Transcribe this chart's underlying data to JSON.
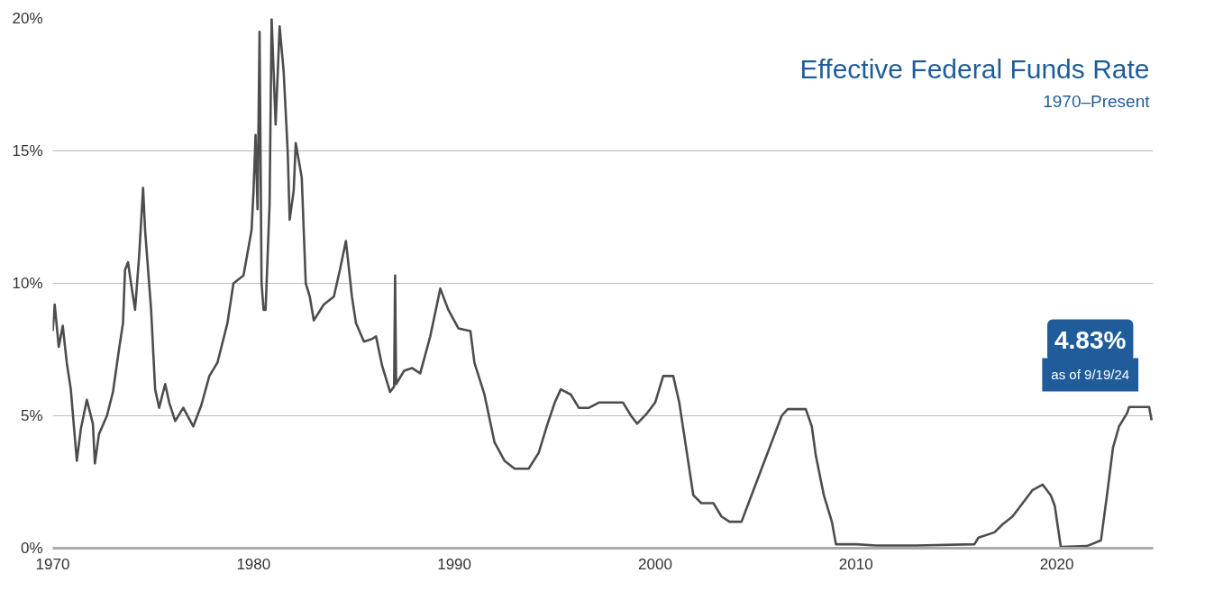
{
  "chart_data": {
    "type": "line",
    "title": "Effective Federal Funds Rate",
    "subtitle": "1970–Present",
    "annotations": [
      "4.83%",
      "as of 9/19/24"
    ],
    "xlim": [
      1970,
      2024.8
    ],
    "xticks": [
      1970,
      1980,
      1990,
      2000,
      2010,
      2020
    ],
    "ylim": [
      0,
      20
    ],
    "yticks": [
      {
        "value": 0,
        "label": "0%"
      },
      {
        "value": 5,
        "label": "5%"
      },
      {
        "value": 10,
        "label": "10%"
      },
      {
        "value": 15,
        "label": "15%"
      },
      {
        "value": 20,
        "label": "20%"
      }
    ],
    "grid": "y",
    "line_style": "solid",
    "marker": "none",
    "series": [
      {
        "color": "#4d4d4d",
        "x": [
          1970.0,
          1970.1,
          1970.3,
          1970.5,
          1970.7,
          1970.9,
          1971.1,
          1971.2,
          1971.4,
          1971.7,
          1972.0,
          1972.1,
          1972.3,
          1972.7,
          1973.0,
          1973.3,
          1973.5,
          1973.6,
          1973.75,
          1973.9,
          1974.1,
          1974.3,
          1974.5,
          1974.6,
          1974.9,
          1975.1,
          1975.3,
          1975.6,
          1975.8,
          1976.1,
          1976.5,
          1977.0,
          1977.4,
          1977.8,
          1978.2,
          1978.7,
          1979.0,
          1979.5,
          1979.9,
          1980.0,
          1980.1,
          1980.2,
          1980.3,
          1980.4,
          1980.5,
          1980.6,
          1980.8,
          1980.9,
          1981.1,
          1981.3,
          1981.5,
          1981.7,
          1981.8,
          1982.0,
          1982.1,
          1982.4,
          1982.6,
          1982.8,
          1983.0,
          1983.5,
          1984.0,
          1984.3,
          1984.6,
          1984.9,
          1985.1,
          1985.5,
          1985.9,
          1986.1,
          1986.4,
          1986.8,
          1987.0,
          1987.05,
          1987.1,
          1987.5,
          1987.9,
          1988.3,
          1988.8,
          1989.3,
          1989.7,
          1990.2,
          1990.8,
          1991.0,
          1991.5,
          1992.0,
          1992.5,
          1993.0,
          1993.7,
          1994.2,
          1994.6,
          1995.0,
          1995.3,
          1995.8,
          1996.2,
          1996.7,
          1997.2,
          1997.7,
          1998.4,
          1998.8,
          1999.1,
          1999.6,
          2000.0,
          2000.4,
          2000.9,
          2001.2,
          2001.5,
          2001.9,
          2002.3,
          2002.9,
          2003.3,
          2003.7,
          2004.3,
          2004.7,
          2005.3,
          2005.8,
          2006.3,
          2006.6,
          2007.5,
          2007.8,
          2008.0,
          2008.4,
          2008.8,
          2009.0,
          2010.0,
          2011.0,
          2013.0,
          2015.9,
          2016.1,
          2016.9,
          2017.3,
          2017.8,
          2018.3,
          2018.8,
          2019.3,
          2019.7,
          2019.9,
          2020.2,
          2021.5,
          2022.2,
          2022.5,
          2022.8,
          2023.1,
          2023.5,
          2023.6,
          2024.6,
          2024.72
        ],
        "values": [
          8.2,
          9.2,
          7.6,
          8.4,
          7.0,
          6.0,
          4.2,
          3.3,
          4.5,
          5.6,
          4.7,
          3.2,
          4.3,
          5.0,
          5.9,
          7.5,
          8.5,
          10.5,
          10.8,
          10.0,
          9.0,
          11.0,
          13.6,
          12.0,
          9.0,
          6.0,
          5.3,
          6.2,
          5.5,
          4.8,
          5.3,
          4.6,
          5.4,
          6.5,
          7.0,
          8.5,
          10.0,
          10.3,
          12.0,
          13.5,
          15.6,
          12.8,
          19.5,
          10.0,
          9.0,
          9.0,
          13.0,
          20.0,
          16.0,
          19.7,
          18.0,
          15.0,
          12.4,
          13.5,
          15.3,
          14.0,
          10.0,
          9.5,
          8.6,
          9.2,
          9.5,
          10.5,
          11.6,
          9.5,
          8.5,
          7.8,
          7.9,
          8.0,
          6.9,
          5.9,
          6.1,
          10.3,
          6.2,
          6.7,
          6.8,
          6.6,
          8.0,
          9.8,
          9.0,
          8.3,
          8.2,
          7.0,
          5.8,
          4.0,
          3.3,
          3.0,
          3.0,
          3.6,
          4.6,
          5.5,
          6.0,
          5.8,
          5.3,
          5.3,
          5.5,
          5.5,
          5.5,
          5.0,
          4.7,
          5.1,
          5.5,
          6.5,
          6.5,
          5.5,
          4.0,
          2.0,
          1.7,
          1.7,
          1.2,
          1.0,
          1.0,
          1.8,
          3.0,
          4.0,
          5.0,
          5.25,
          5.25,
          4.6,
          3.5,
          2.0,
          1.0,
          0.15,
          0.15,
          0.1,
          0.1,
          0.15,
          0.4,
          0.6,
          0.9,
          1.2,
          1.7,
          2.2,
          2.4,
          2.0,
          1.6,
          0.05,
          0.08,
          0.3,
          2.0,
          3.8,
          4.6,
          5.1,
          5.33,
          5.33,
          4.83
        ]
      }
    ]
  }
}
